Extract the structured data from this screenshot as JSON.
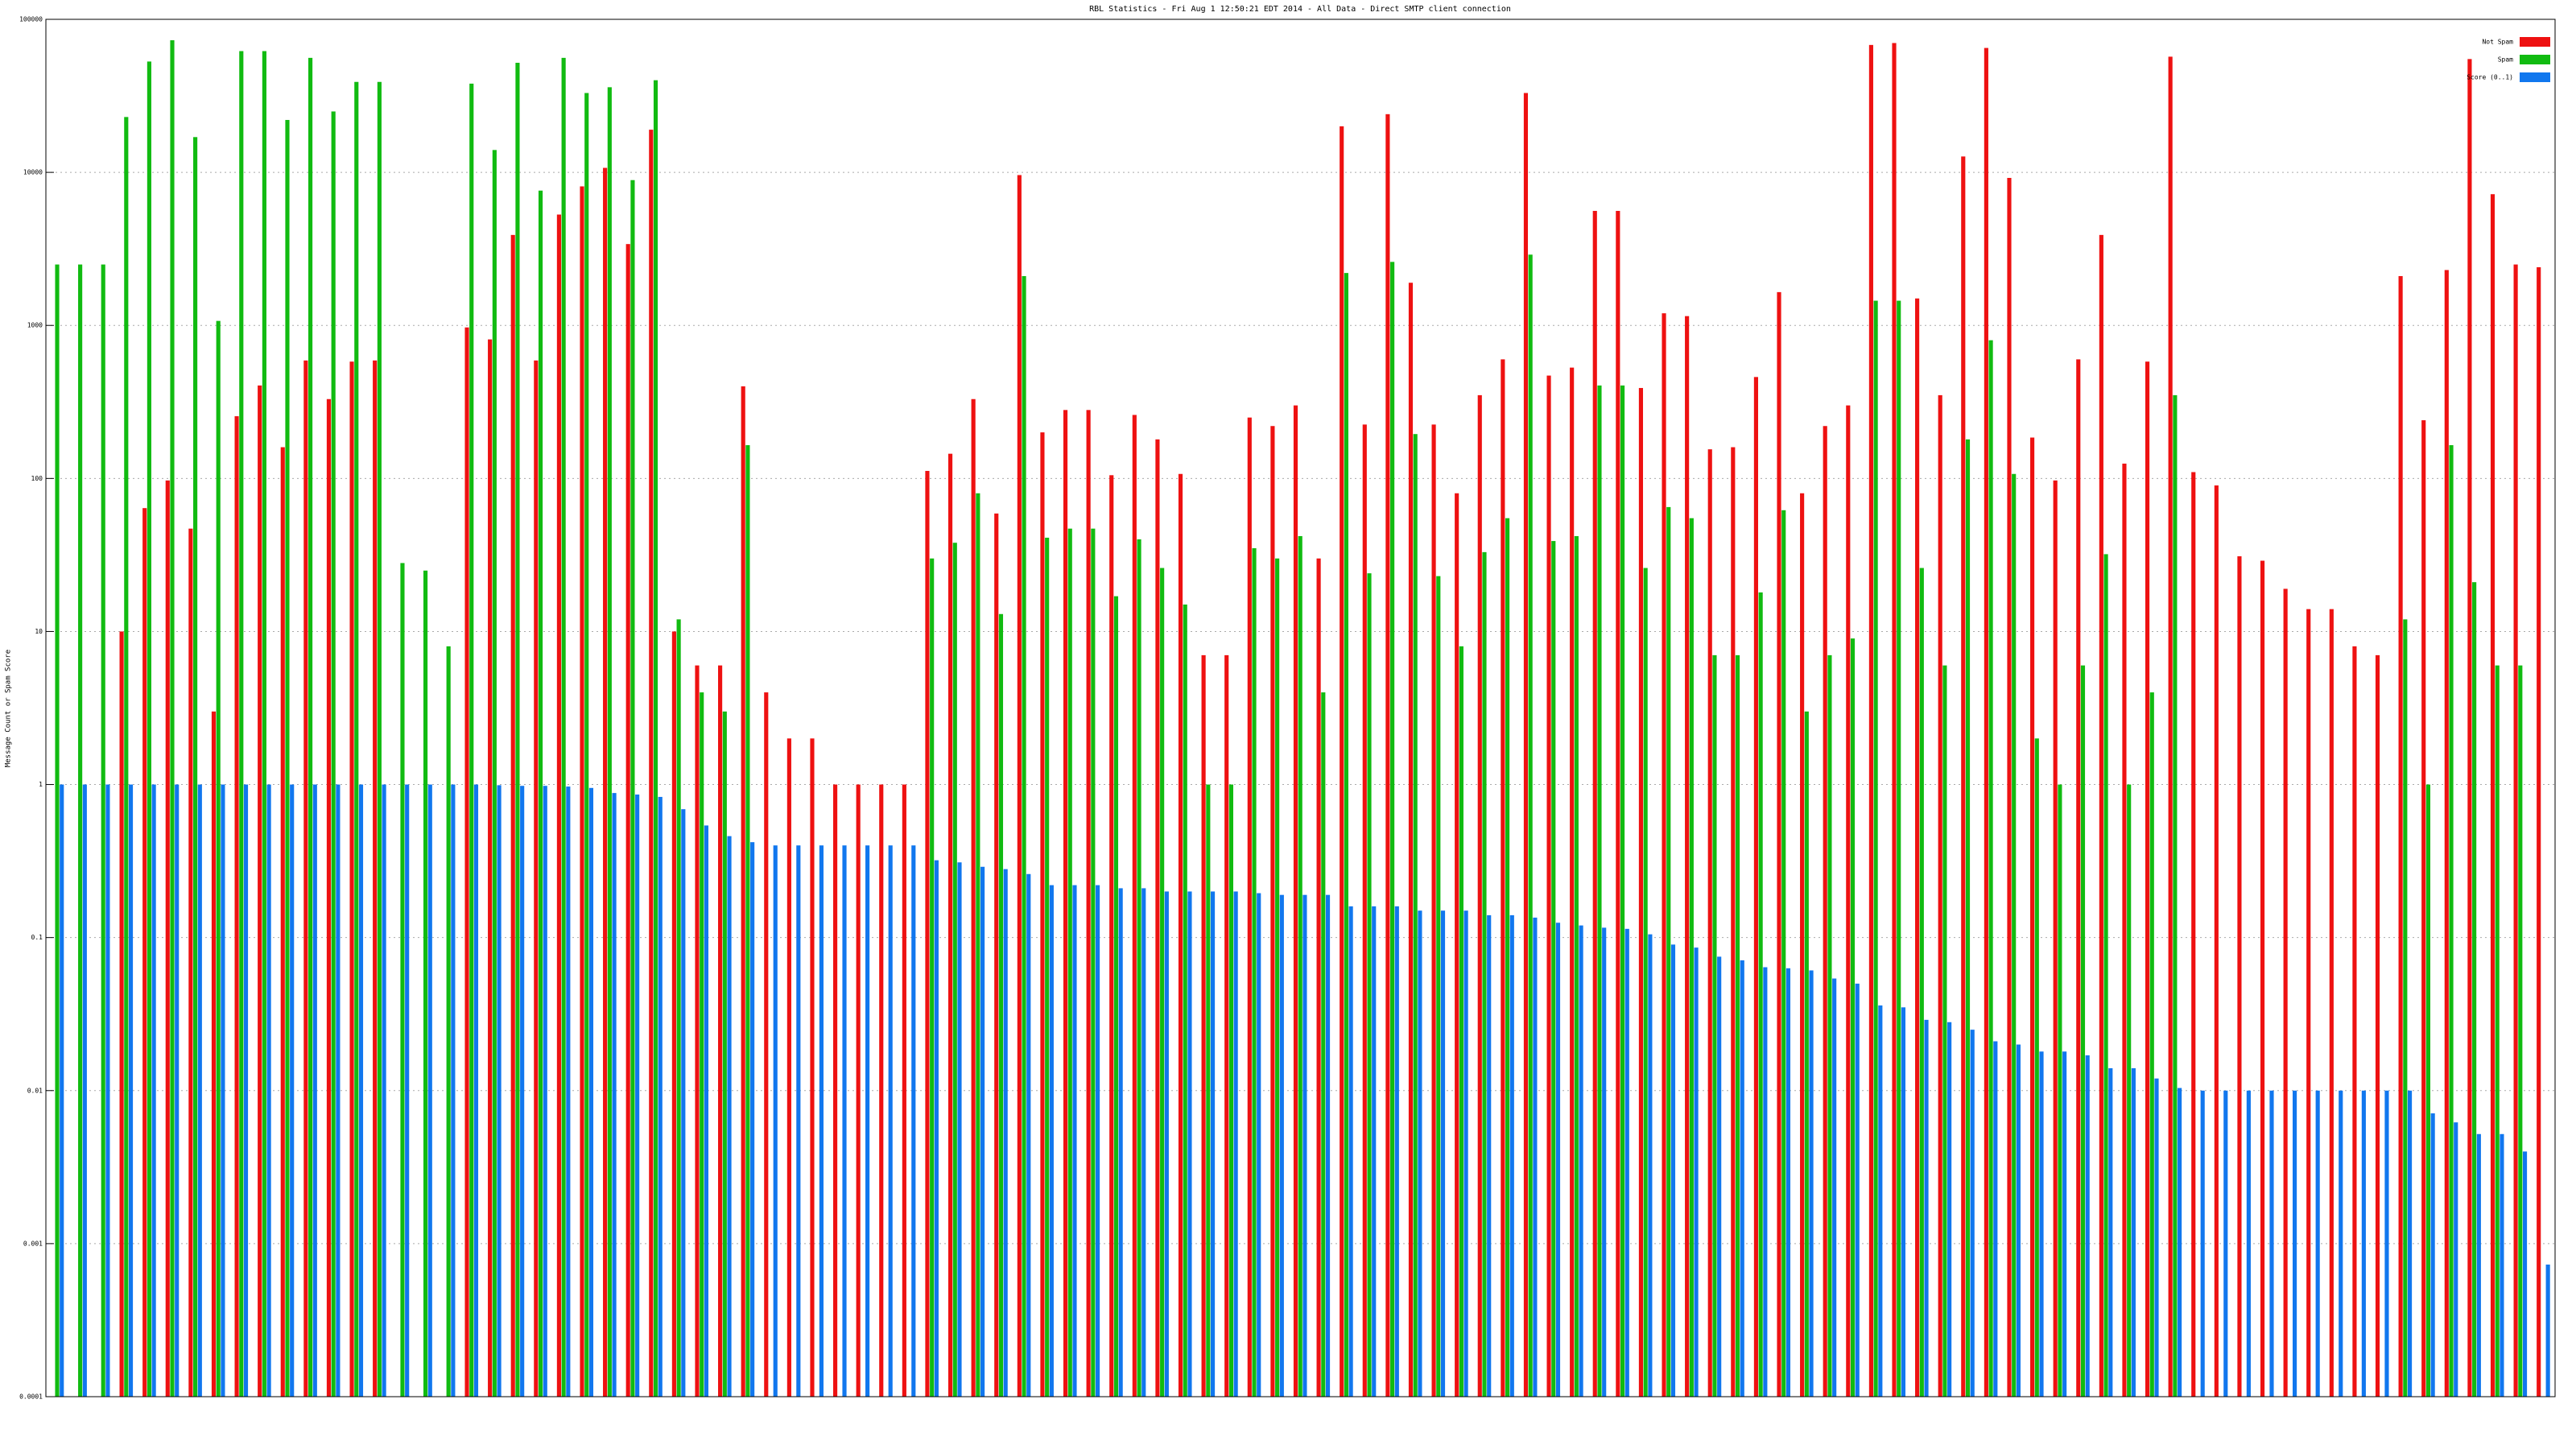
{
  "chart_data": {
    "type": "bar",
    "title": "RBL Statistics - Fri Aug  1 12:50:21 EDT 2014 - All Data - Direct SMTP client connection",
    "y_label": "Message Count or Spam Score",
    "log_y": true,
    "grid": true,
    "legend": "top-right",
    "ylim": [
      0.0001,
      100000
    ],
    "yticks": [
      0.0001,
      0.001,
      0.01,
      0.1,
      1,
      10,
      100,
      1000,
      10000,
      100000
    ],
    "categories": [
      null,
      null,
      null,
      null,
      null,
      null,
      null,
      null,
      null,
      null,
      null,
      null,
      null,
      null,
      null,
      null,
      null,
      null,
      null,
      null,
      null,
      null,
      null,
      null,
      null,
      null,
      null,
      null,
      null,
      null,
      null,
      null,
      null,
      null,
      null,
      null,
      null,
      null,
      null,
      null,
      null,
      null,
      null,
      null,
      null,
      null,
      null,
      null,
      null,
      null,
      null,
      null,
      null,
      null,
      null,
      null,
      null,
      null,
      null,
      null,
      null,
      null,
      null,
      null,
      null,
      null,
      null,
      null,
      null,
      null,
      null,
      null,
      null,
      null,
      null,
      null,
      null,
      null,
      null,
      null,
      null,
      null,
      null,
      null,
      null,
      null,
      null,
      null,
      null,
      null,
      null,
      null,
      null,
      null,
      null,
      null,
      null,
      null,
      null,
      null,
      null,
      null,
      null,
      null,
      null,
      null,
      null,
      null,
      null
    ],
    "series": [
      {
        "name": "Not Spam",
        "color": "#ee1111",
        "values": [
          null,
          null,
          null,
          10,
          64,
          97,
          47,
          3,
          255,
          405,
          160,
          590,
          330,
          580,
          590,
          null,
          null,
          null,
          970,
          810,
          3900,
          590,
          5300,
          8100,
          10700,
          3400,
          19000,
          10,
          6,
          6,
          400,
          4,
          2,
          2,
          1,
          1,
          1,
          1,
          112,
          145,
          330,
          59,
          9600,
          200,
          280,
          280,
          105,
          260,
          180,
          107,
          7,
          7,
          250,
          220,
          300,
          30,
          20000,
          225,
          24000,
          1900,
          225,
          80,
          350,
          600,
          33000,
          470,
          530,
          5600,
          5600,
          390,
          1200,
          1150,
          155,
          160,
          460,
          1650,
          80,
          220,
          300,
          68000,
          70000,
          1500,
          350,
          12700,
          65000,
          9200,
          185,
          97,
          600,
          3900,
          125,
          580,
          57000,
          110,
          90,
          31,
          29,
          19,
          14,
          14,
          8,
          7,
          2100,
          240,
          2300,
          55000,
          7200,
          2500,
          2400
        ]
      },
      {
        "name": "Spam",
        "color": "#11bb11",
        "values": [
          2500,
          2500,
          2500,
          23000,
          53000,
          73000,
          17000,
          1070,
          62000,
          62000,
          22000,
          56000,
          25000,
          39000,
          39000,
          28,
          25,
          8,
          38000,
          14000,
          52000,
          7600,
          56000,
          33000,
          36000,
          8900,
          40000,
          12,
          4,
          3,
          165,
          null,
          null,
          null,
          null,
          null,
          null,
          null,
          30,
          38,
          80,
          13,
          2100,
          41,
          47,
          47,
          17,
          40,
          26,
          15,
          1,
          1,
          35,
          30,
          42,
          4,
          2200,
          24,
          2600,
          195,
          23,
          8,
          33,
          55,
          2900,
          39,
          42,
          405,
          405,
          26,
          65,
          55,
          7,
          7,
          18,
          62,
          3,
          7,
          9,
          1450,
          1450,
          26,
          6,
          180,
          800,
          107,
          2,
          1,
          6,
          32,
          1,
          4,
          350,
          null,
          null,
          null,
          null,
          null,
          null,
          null,
          null,
          null,
          12,
          1,
          165,
          21,
          6,
          6,
          null
        ]
      },
      {
        "name": "Score (0..1)",
        "color": "#1177ee",
        "values": [
          1,
          1,
          1,
          1,
          1,
          1,
          1,
          1,
          1,
          1,
          1,
          1,
          1,
          1,
          1,
          1,
          1,
          1,
          1,
          0.99,
          0.98,
          0.98,
          0.97,
          0.95,
          0.88,
          0.86,
          0.83,
          0.69,
          0.54,
          0.46,
          0.42,
          0.4,
          0.4,
          0.4,
          0.4,
          0.4,
          0.4,
          0.4,
          0.32,
          0.31,
          0.29,
          0.28,
          0.26,
          0.22,
          0.22,
          0.22,
          0.21,
          0.21,
          0.2,
          0.2,
          0.2,
          0.2,
          0.195,
          0.19,
          0.19,
          0.19,
          0.16,
          0.16,
          0.16,
          0.15,
          0.15,
          0.15,
          0.14,
          0.14,
          0.135,
          0.125,
          0.12,
          0.116,
          0.114,
          0.105,
          0.09,
          0.086,
          0.075,
          0.071,
          0.064,
          0.063,
          0.061,
          0.054,
          0.05,
          0.036,
          0.035,
          0.029,
          0.028,
          0.025,
          0.021,
          0.02,
          0.018,
          0.018,
          0.017,
          0.014,
          0.014,
          0.012,
          0.0104,
          0.01,
          0.01,
          0.01,
          0.01,
          0.01,
          0.01,
          0.01,
          0.01,
          0.01,
          0.01,
          0.0071,
          0.0062,
          0.0052,
          0.0052,
          0.004,
          0.00073
        ]
      }
    ]
  }
}
